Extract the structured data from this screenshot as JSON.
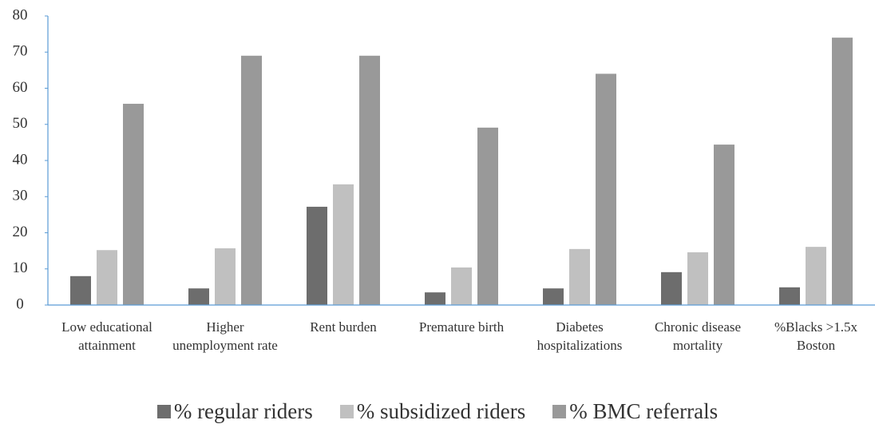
{
  "chart_data": {
    "type": "bar",
    "categories": [
      "Low educational attainment",
      "Higher unemployment rate",
      "Rent burden",
      "Premature birth",
      "Diabetes hospitalizations",
      "Chronic disease mortality",
      "%Blacks >1.5x Boston"
    ],
    "series": [
      {
        "name": "% regular riders",
        "color": "#6d6d6d",
        "values": [
          8.0,
          4.6,
          27.2,
          3.5,
          4.6,
          9.1,
          4.9
        ]
      },
      {
        "name": "% subsidized riders",
        "color": "#c0c0c0",
        "values": [
          15.2,
          15.7,
          33.4,
          10.4,
          15.5,
          14.6,
          16.1
        ]
      },
      {
        "name": "% BMC referrals",
        "color": "#999999",
        "values": [
          55.7,
          69,
          69,
          49.1,
          64,
          44.4,
          74
        ]
      }
    ],
    "ylim": [
      0,
      80
    ],
    "yticks": [
      0,
      10,
      20,
      30,
      40,
      50,
      60,
      70,
      80
    ]
  }
}
